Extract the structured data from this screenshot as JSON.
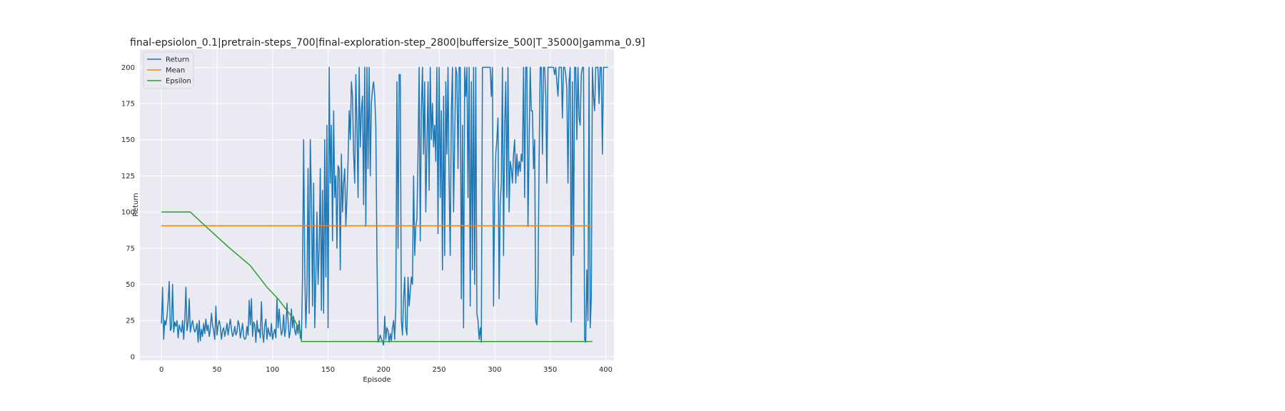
{
  "chart_data": {
    "type": "line",
    "title": "final-epsiolon_0.1|pretrain-steps_700|final-exploration-step_2800|buffersize_500|T_35000|gamma_0.9]",
    "xlabel": "Episode",
    "ylabel": "Return",
    "xlim": [
      -19.4,
      407.4
    ],
    "ylim": [
      -2.5,
      212.5
    ],
    "xticks": [
      0,
      50,
      100,
      150,
      200,
      250,
      300,
      350,
      400
    ],
    "yticks": [
      0,
      25,
      50,
      75,
      100,
      125,
      150,
      175,
      200
    ],
    "grid": true,
    "legend_position": "top-left",
    "colors": {
      "background": "#eaeaf2",
      "grid": "#ffffff",
      "Return": "#1f77b4",
      "Mean": "#ff7f0e",
      "Epsilon": "#2ca02c"
    },
    "series": [
      {
        "name": "Return",
        "values": [
          23,
          48,
          12,
          25,
          22,
          28,
          38,
          52,
          18,
          20,
          50,
          17,
          24,
          21,
          25,
          13,
          22,
          19,
          17,
          25,
          12,
          25,
          48,
          18,
          23,
          40,
          17,
          22,
          25,
          20,
          17,
          19,
          23,
          10,
          25,
          11,
          19,
          14,
          23,
          16,
          26,
          18,
          22,
          14,
          19,
          30,
          22,
          18,
          12,
          35,
          15,
          22,
          25,
          21,
          12,
          18,
          20,
          14,
          18,
          23,
          15,
          21,
          26,
          19,
          14,
          16,
          21,
          15,
          17,
          25,
          22,
          13,
          18,
          23,
          14,
          12,
          13,
          21,
          15,
          39,
          22,
          40,
          14,
          24,
          22,
          10,
          25,
          17,
          19,
          13,
          38,
          16,
          10,
          22,
          26,
          12,
          20,
          16,
          14,
          23,
          12,
          16,
          19,
          13,
          40,
          20,
          33,
          22,
          15,
          18,
          29,
          14,
          20,
          37,
          25,
          13,
          18,
          33,
          20,
          28,
          18,
          15,
          22,
          16,
          25,
          13,
          12,
          55,
          150,
          60,
          20,
          45,
          130,
          30,
          150,
          110,
          35,
          120,
          20,
          55,
          100,
          50,
          75,
          130,
          32,
          115,
          30,
          150,
          55,
          160,
          20,
          200,
          120,
          160,
          80,
          170,
          110,
          125,
          75,
          132,
          130,
          60,
          140,
          100,
          120,
          130,
          90,
          110,
          135,
          170,
          150,
          190,
          180,
          140,
          120,
          195,
          160,
          110,
          200,
          145,
          170,
          180,
          105,
          200,
          90,
          200,
          130,
          200,
          125,
          175,
          185,
          190,
          180,
          160,
          70,
          10,
          12,
          15,
          12,
          11,
          8,
          28,
          12,
          20,
          18,
          10,
          16,
          11,
          20,
          25,
          12,
          35,
          190,
          75,
          195,
          195,
          25,
          15,
          40,
          55,
          20,
          15,
          55,
          35,
          45,
          55,
          50,
          125,
          70,
          90,
          95,
          140,
          200,
          80,
          170,
          200,
          140,
          190,
          100,
          145,
          190,
          115,
          200,
          150,
          175,
          145,
          160,
          135,
          200,
          85,
          200,
          110,
          170,
          60,
          180,
          70,
          190,
          140,
          200,
          120,
          70,
          170,
          200,
          100,
          150,
          200,
          195,
          130,
          200,
          200,
          40,
          160,
          20,
          200,
          180,
          200,
          110,
          200,
          35,
          190,
          60,
          200,
          50,
          200,
          30,
          25,
          12,
          20,
          10,
          200,
          200,
          200,
          200,
          200,
          200,
          200,
          200,
          180,
          200,
          35,
          110,
          140,
          150,
          165,
          40,
          105,
          120,
          200,
          70,
          160,
          190,
          110,
          200,
          100,
          135,
          130,
          120,
          140,
          150,
          120,
          140,
          125,
          135,
          128,
          140,
          135,
          200,
          110,
          200,
          200,
          90,
          145,
          200,
          170,
          170,
          130,
          150,
          25,
          22,
          50,
          135,
          200,
          200,
          140,
          200,
          200,
          180,
          120,
          200,
          200,
          200,
          200,
          200,
          200,
          195,
          200,
          190,
          180,
          200,
          200,
          200,
          165,
          200,
          200,
          195,
          185,
          120,
          190,
          200,
          24,
          190,
          70,
          200,
          200,
          150,
          200,
          165,
          160,
          195,
          200,
          200,
          12,
          10,
          60,
          25,
          200,
          20,
          40,
          200,
          180,
          170,
          200,
          200,
          210,
          175,
          210,
          200,
          140,
          200,
          200,
          200,
          200,
          200
        ]
      },
      {
        "name": "Mean",
        "x": [
          0,
          388
        ],
        "values": [
          90.5,
          90.5
        ]
      },
      {
        "name": "Epsilon",
        "x": [
          0,
          26,
          40,
          60,
          80,
          95,
          105,
          115,
          120,
          125,
          126,
          127,
          388
        ],
        "values": [
          100,
          100,
          90,
          76,
          63,
          48,
          40,
          30,
          25,
          18,
          10.5,
          10.5,
          10.5
        ]
      }
    ]
  }
}
